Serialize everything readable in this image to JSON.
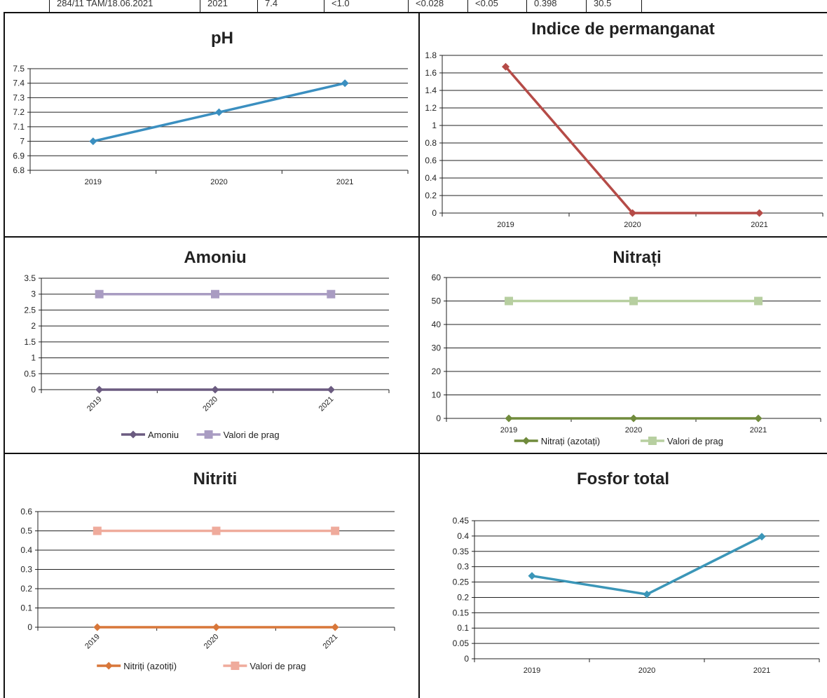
{
  "top_table": {
    "cells": [
      "284/11 TAM/18.06.2021",
      "2021",
      "7.4",
      "<1.0",
      "<0.028",
      "<0.05",
      "0.398",
      "30.5"
    ]
  },
  "colors": {
    "ph": "#3b8fc0",
    "permanganat": "#b54b47",
    "amoniu": "#6b5b80",
    "amoniu_prag": "#a99cc2",
    "nitrati": "#708b3c",
    "nitrati_prag": "#b7cfa0",
    "nitriti": "#d8773a",
    "nitriti_prag": "#efab9c",
    "fosfor": "#3b96b8"
  },
  "chart_data": [
    {
      "id": "ph",
      "type": "line",
      "title": "pH",
      "categories": [
        "2019",
        "2020",
        "2021"
      ],
      "series": [
        {
          "values": [
            7.0,
            7.2,
            7.4
          ],
          "color": "#3b8fc0",
          "marker": "diamond"
        }
      ],
      "ylim": [
        6.8,
        7.5
      ],
      "yticks": [
        "6.8",
        "6.9",
        "7",
        "7.1",
        "7.2",
        "7.3",
        "7.4",
        "7.5"
      ],
      "ytick_step": 0.1,
      "grid": true,
      "xlabels_rotated": false
    },
    {
      "id": "permanganat",
      "type": "line",
      "title": "Indice de permanganat",
      "categories": [
        "2019",
        "2020",
        "2021"
      ],
      "series": [
        {
          "values": [
            1.67,
            0,
            0
          ],
          "color": "#b54b47",
          "marker": "diamond"
        }
      ],
      "ylim": [
        0,
        1.8
      ],
      "yticks": [
        "0",
        "0.2",
        "0.4",
        "0.6",
        "0.8",
        "1",
        "1.2",
        "1.4",
        "1.6",
        "1.8"
      ],
      "ytick_step": 0.2,
      "grid": true,
      "xlabels_rotated": false
    },
    {
      "id": "amoniu",
      "type": "line",
      "title": "Amoniu",
      "categories": [
        "2019",
        "2020",
        "2021"
      ],
      "series": [
        {
          "name": "Amoniu",
          "values": [
            0,
            0,
            0
          ],
          "color": "#6b5b80",
          "marker": "diamond"
        },
        {
          "name": "Valori de prag",
          "values": [
            3,
            3,
            3
          ],
          "color": "#a99cc2",
          "marker": "square"
        }
      ],
      "ylim": [
        0,
        3.5
      ],
      "yticks": [
        "0",
        "0.5",
        "1",
        "1.5",
        "2",
        "2.5",
        "3",
        "3.5"
      ],
      "ytick_step": 0.5,
      "grid": true,
      "legend": "bottom",
      "xlabels_rotated": true
    },
    {
      "id": "nitrati",
      "type": "line",
      "title": "Nitrați",
      "categories": [
        "2019",
        "2020",
        "2021"
      ],
      "series": [
        {
          "name": "Nitrați (azotați)",
          "values": [
            0,
            0,
            0
          ],
          "color": "#708b3c",
          "marker": "diamond"
        },
        {
          "name": "Valori de prag",
          "values": [
            50,
            50,
            50
          ],
          "color": "#b7cfa0",
          "marker": "square"
        }
      ],
      "ylim": [
        0,
        60
      ],
      "yticks": [
        "0",
        "10",
        "20",
        "30",
        "40",
        "50",
        "60"
      ],
      "ytick_step": 10,
      "grid": true,
      "legend": "bottom",
      "xlabels_rotated": false
    },
    {
      "id": "nitriti",
      "type": "line",
      "title": "Nitriti",
      "categories": [
        "2019",
        "2020",
        "2021"
      ],
      "series": [
        {
          "name": "Nitriți (azotiți)",
          "values": [
            0,
            0,
            0
          ],
          "color": "#d8773a",
          "marker": "diamond"
        },
        {
          "name": "Valori de prag",
          "values": [
            0.5,
            0.5,
            0.5
          ],
          "color": "#efab9c",
          "marker": "square"
        }
      ],
      "ylim": [
        0,
        0.6
      ],
      "yticks": [
        "0",
        "0.1",
        "0.2",
        "0.3",
        "0.4",
        "0.5",
        "0.6"
      ],
      "ytick_step": 0.1,
      "grid": true,
      "legend": "bottom",
      "xlabels_rotated": true
    },
    {
      "id": "fosfor",
      "type": "line",
      "title": "Fosfor total",
      "categories": [
        "2019",
        "2020",
        "2021"
      ],
      "series": [
        {
          "values": [
            0.27,
            0.21,
            0.398
          ],
          "color": "#3b96b8",
          "marker": "diamond"
        }
      ],
      "ylim": [
        0,
        0.45
      ],
      "yticks": [
        "0",
        "0.05",
        "0.1",
        "0.15",
        "0.2",
        "0.25",
        "0.3",
        "0.35",
        "0.4",
        "0.45"
      ],
      "ytick_step": 0.05,
      "grid": true,
      "xlabels_rotated": false
    }
  ]
}
